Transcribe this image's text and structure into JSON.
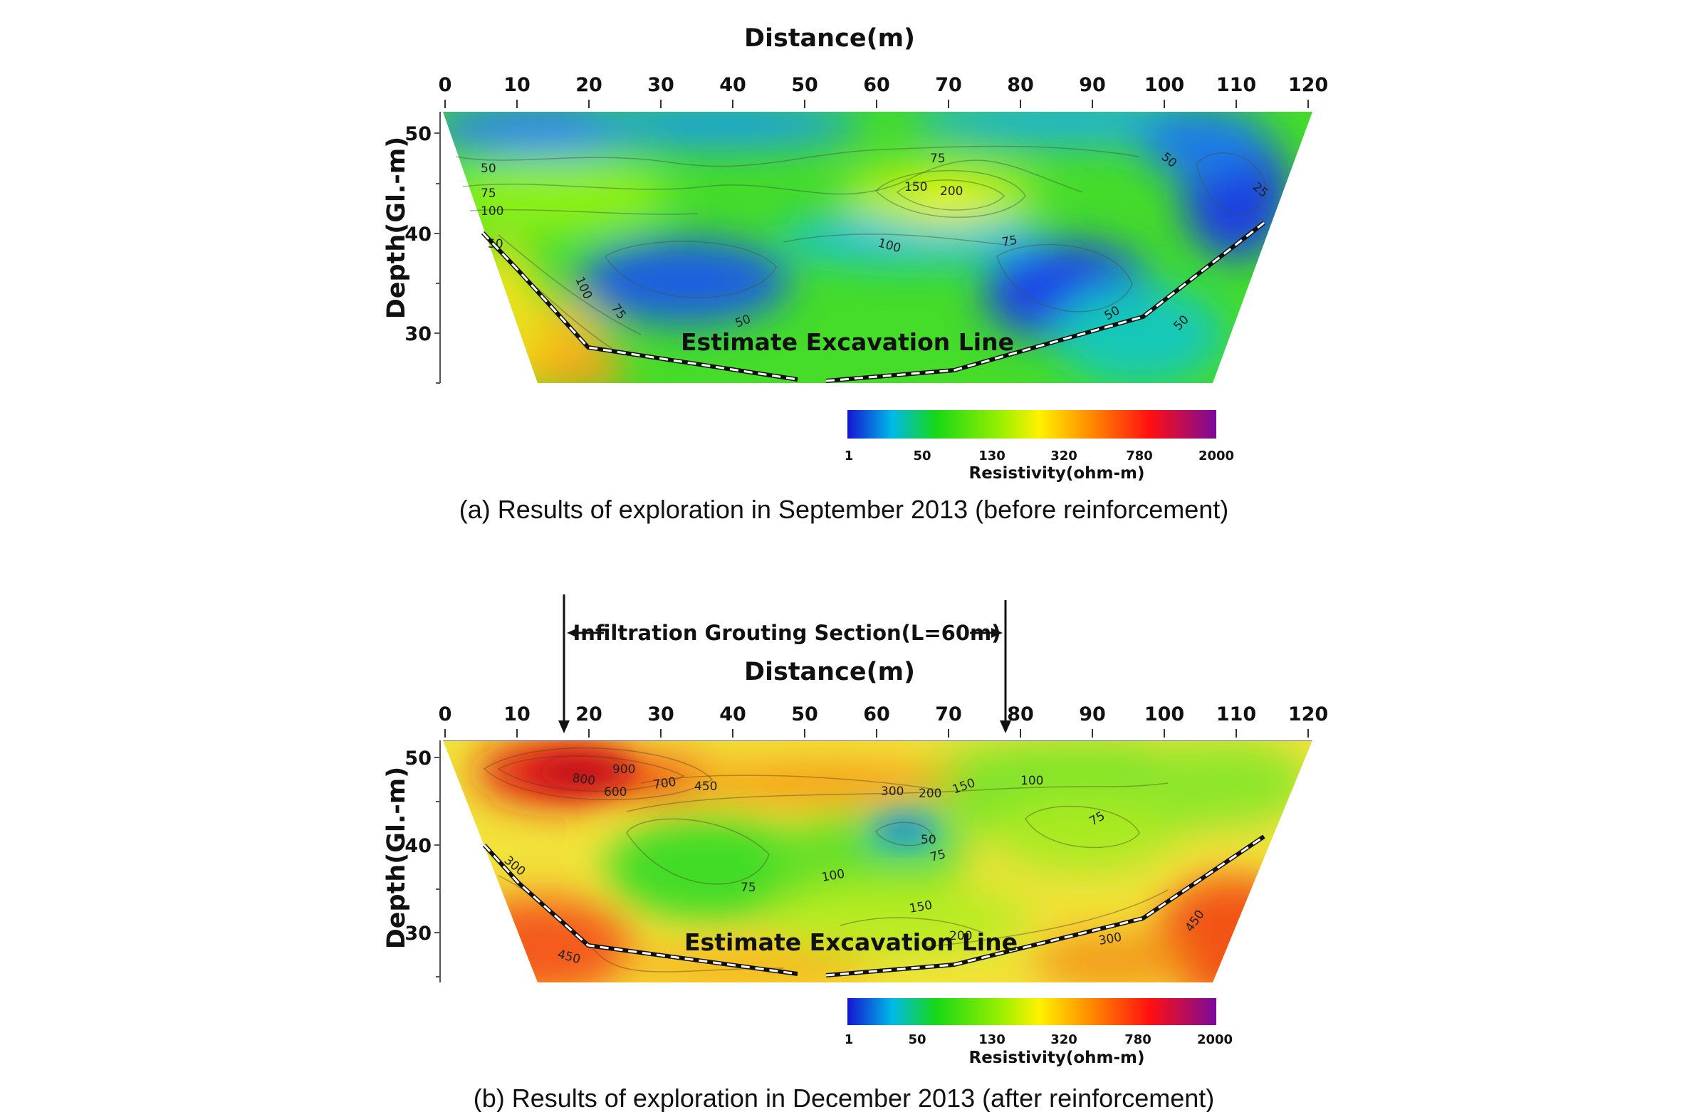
{
  "panels": [
    {
      "id": "a",
      "x_title": "Distance(m)",
      "y_title": "Depth(Gl.-m)",
      "x_ticks": [
        "0",
        "10",
        "20",
        "30",
        "40",
        "50",
        "60",
        "70",
        "80",
        "90",
        "100",
        "110",
        "120"
      ],
      "y_ticks": [
        "50",
        "40",
        "30"
      ],
      "excavation_label": "Estimate  Excavation  Line",
      "contour_labels": [
        "50",
        "75",
        "100",
        "50",
        "100",
        "75",
        "50",
        "75",
        "150",
        "200",
        "100",
        "75",
        "50",
        "25",
        "50",
        "50"
      ],
      "colorbar_ticks": [
        "1",
        "50",
        "130",
        "320",
        "780",
        "2000"
      ],
      "colorbar_title": "Resistivity(ohm-m)",
      "caption": "(a) Results of exploration in September 2013 (before reinforcement)"
    },
    {
      "id": "b",
      "x_title": "Distance(m)",
      "y_title": "Depth(Gl.-m)",
      "x_ticks": [
        "0",
        "10",
        "20",
        "30",
        "40",
        "50",
        "60",
        "70",
        "80",
        "90",
        "100",
        "110",
        "120"
      ],
      "y_ticks": [
        "50",
        "40",
        "30"
      ],
      "excavation_label": "Estimate  Excavation  Line",
      "contour_labels": [
        "800",
        "900",
        "600",
        "700",
        "450",
        "300",
        "200",
        "150",
        "100",
        "75",
        "50",
        "75",
        "75",
        "100",
        "150",
        "300",
        "450",
        "300",
        "450",
        "200"
      ],
      "colorbar_ticks": [
        "1",
        "50",
        "130",
        "320",
        "780",
        "2000"
      ],
      "colorbar_title": "Resistivity(ohm-m)",
      "caption": "(b) Results of exploration in December 2013 (after reinforcement)",
      "grouting_label": "Infiltration  Grouting  Section(L=60m)"
    }
  ],
  "colors": {
    "colorbar_stops": [
      "#1515d0",
      "#00c0e0",
      "#17d817",
      "#7af000",
      "#fff200",
      "#ff8a00",
      "#ff1010",
      "#7a0a9a"
    ],
    "section_base_a": "#3fdc28",
    "section_base_b": "#f5e236"
  }
}
